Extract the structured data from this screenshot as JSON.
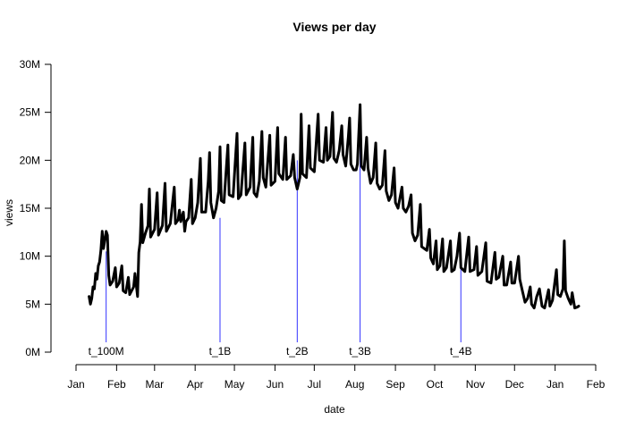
{
  "chart_data": {
    "type": "line",
    "title": "Views per day",
    "xlabel": "date",
    "ylabel": "views",
    "x_unit": "date",
    "y_unit": "views",
    "x_ticks": [
      "Jan",
      "Feb",
      "Mar",
      "Apr",
      "May",
      "Jun",
      "Jul",
      "Aug",
      "Sep",
      "Oct",
      "Nov",
      "Dec",
      "Jan",
      "Feb"
    ],
    "x_tick_dates": [
      "2016-01-01",
      "2016-02-01",
      "2016-03-01",
      "2016-04-01",
      "2016-05-01",
      "2016-06-01",
      "2016-07-01",
      "2016-08-01",
      "2016-09-01",
      "2016-10-01",
      "2016-11-01",
      "2016-12-01",
      "2017-01-01",
      "2017-02-01"
    ],
    "y_ticks": [
      {
        "value": 0,
        "label": "0M"
      },
      {
        "value": 5000000,
        "label": "5M"
      },
      {
        "value": 10000000,
        "label": "10M"
      },
      {
        "value": 15000000,
        "label": "15M"
      },
      {
        "value": 20000000,
        "label": "20M"
      },
      {
        "value": 25000000,
        "label": "25M"
      },
      {
        "value": 30000000,
        "label": "30M"
      }
    ],
    "ylim": [
      0,
      30000000
    ],
    "grid": false,
    "legend": "none",
    "series": [
      {
        "color": "#000000",
        "points": [
          [
            "2016-01-11",
            5800000
          ],
          [
            "2016-01-12",
            5000000
          ],
          [
            "2016-01-13",
            5600000
          ],
          [
            "2016-01-14",
            6800000
          ],
          [
            "2016-01-15",
            6600000
          ],
          [
            "2016-01-16",
            8200000
          ],
          [
            "2016-01-17",
            7600000
          ],
          [
            "2016-01-18",
            9000000
          ],
          [
            "2016-01-19",
            9400000
          ],
          [
            "2016-01-20",
            10600000
          ],
          [
            "2016-01-21",
            12600000
          ],
          [
            "2016-01-22",
            10800000
          ],
          [
            "2016-01-24",
            12600000
          ],
          [
            "2016-01-25",
            12200000
          ],
          [
            "2016-01-26",
            8000000
          ],
          [
            "2016-01-27",
            7000000
          ],
          [
            "2016-01-29",
            7400000
          ],
          [
            "2016-01-31",
            8800000
          ],
          [
            "2016-02-01",
            6800000
          ],
          [
            "2016-02-03",
            7200000
          ],
          [
            "2016-02-05",
            9000000
          ],
          [
            "2016-02-06",
            6400000
          ],
          [
            "2016-02-08",
            6200000
          ],
          [
            "2016-02-10",
            7800000
          ],
          [
            "2016-02-11",
            6000000
          ],
          [
            "2016-02-14",
            6800000
          ],
          [
            "2016-02-15",
            8200000
          ],
          [
            "2016-02-17",
            5800000
          ],
          [
            "2016-02-18",
            10400000
          ],
          [
            "2016-02-19",
            11500000
          ],
          [
            "2016-02-20",
            15400000
          ],
          [
            "2016-02-21",
            11400000
          ],
          [
            "2016-02-23",
            12400000
          ],
          [
            "2016-02-25",
            13200000
          ],
          [
            "2016-02-26",
            17000000
          ],
          [
            "2016-02-27",
            12000000
          ],
          [
            "2016-03-01",
            12800000
          ],
          [
            "2016-03-03",
            16600000
          ],
          [
            "2016-03-04",
            12200000
          ],
          [
            "2016-03-07",
            13200000
          ],
          [
            "2016-03-09",
            17600000
          ],
          [
            "2016-03-10",
            12600000
          ],
          [
            "2016-03-13",
            13400000
          ],
          [
            "2016-03-16",
            17200000
          ],
          [
            "2016-03-17",
            13400000
          ],
          [
            "2016-03-19",
            13800000
          ],
          [
            "2016-03-20",
            14800000
          ],
          [
            "2016-03-21",
            13600000
          ],
          [
            "2016-03-23",
            14600000
          ],
          [
            "2016-03-24",
            12600000
          ],
          [
            "2016-03-25",
            13600000
          ],
          [
            "2016-03-27",
            14000000
          ],
          [
            "2016-03-29",
            18000000
          ],
          [
            "2016-03-30",
            13400000
          ],
          [
            "2016-04-01",
            14000000
          ],
          [
            "2016-04-03",
            15600000
          ],
          [
            "2016-04-05",
            20200000
          ],
          [
            "2016-04-06",
            14600000
          ],
          [
            "2016-04-09",
            14600000
          ],
          [
            "2016-04-11",
            17800000
          ],
          [
            "2016-04-12",
            20800000
          ],
          [
            "2016-04-13",
            15600000
          ],
          [
            "2016-04-15",
            14000000
          ],
          [
            "2016-04-17",
            15000000
          ],
          [
            "2016-04-19",
            16800000
          ],
          [
            "2016-04-20",
            21400000
          ],
          [
            "2016-04-21",
            15800000
          ],
          [
            "2016-04-23",
            15600000
          ],
          [
            "2016-04-26",
            21600000
          ],
          [
            "2016-04-27",
            16400000
          ],
          [
            "2016-04-30",
            16200000
          ],
          [
            "2016-05-03",
            22800000
          ],
          [
            "2016-05-04",
            16000000
          ],
          [
            "2016-05-06",
            16400000
          ],
          [
            "2016-05-09",
            21800000
          ],
          [
            "2016-05-10",
            16400000
          ],
          [
            "2016-05-13",
            17200000
          ],
          [
            "2016-05-15",
            22400000
          ],
          [
            "2016-05-16",
            16600000
          ],
          [
            "2016-05-18",
            16200000
          ],
          [
            "2016-05-20",
            17800000
          ],
          [
            "2016-05-22",
            23000000
          ],
          [
            "2016-05-23",
            18200000
          ],
          [
            "2016-05-25",
            17200000
          ],
          [
            "2016-05-28",
            22600000
          ],
          [
            "2016-05-29",
            17400000
          ],
          [
            "2016-06-01",
            17800000
          ],
          [
            "2016-06-03",
            23400000
          ],
          [
            "2016-06-04",
            18600000
          ],
          [
            "2016-06-07",
            18000000
          ],
          [
            "2016-06-09",
            22400000
          ],
          [
            "2016-06-10",
            18000000
          ],
          [
            "2016-06-13",
            18400000
          ],
          [
            "2016-06-15",
            20600000
          ],
          [
            "2016-06-16",
            18200000
          ],
          [
            "2016-06-18",
            17000000
          ],
          [
            "2016-06-20",
            18200000
          ],
          [
            "2016-06-21",
            24800000
          ],
          [
            "2016-06-22",
            18600000
          ],
          [
            "2016-06-25",
            18200000
          ],
          [
            "2016-06-27",
            23600000
          ],
          [
            "2016-06-28",
            19200000
          ],
          [
            "2016-07-01",
            18800000
          ],
          [
            "2016-07-04",
            24800000
          ],
          [
            "2016-07-05",
            20000000
          ],
          [
            "2016-07-08",
            19800000
          ],
          [
            "2016-07-10",
            23400000
          ],
          [
            "2016-07-11",
            20000000
          ],
          [
            "2016-07-13",
            20400000
          ],
          [
            "2016-07-15",
            25000000
          ],
          [
            "2016-07-16",
            20200000
          ],
          [
            "2016-07-18",
            19800000
          ],
          [
            "2016-07-20",
            21000000
          ],
          [
            "2016-07-22",
            23600000
          ],
          [
            "2016-07-23",
            20600000
          ],
          [
            "2016-07-25",
            19400000
          ],
          [
            "2016-07-27",
            22400000
          ],
          [
            "2016-07-28",
            24400000
          ],
          [
            "2016-07-29",
            19600000
          ],
          [
            "2016-07-31",
            19000000
          ],
          [
            "2016-08-02",
            19000000
          ],
          [
            "2016-08-03",
            19600000
          ],
          [
            "2016-08-05",
            25800000
          ],
          [
            "2016-08-06",
            19400000
          ],
          [
            "2016-08-08",
            19000000
          ],
          [
            "2016-08-10",
            22400000
          ],
          [
            "2016-08-11",
            19200000
          ],
          [
            "2016-08-13",
            17600000
          ],
          [
            "2016-08-15",
            18200000
          ],
          [
            "2016-08-17",
            21800000
          ],
          [
            "2016-08-18",
            17600000
          ],
          [
            "2016-08-20",
            17000000
          ],
          [
            "2016-08-22",
            17400000
          ],
          [
            "2016-08-24",
            21000000
          ],
          [
            "2016-08-25",
            16800000
          ],
          [
            "2016-08-27",
            15800000
          ],
          [
            "2016-08-29",
            16400000
          ],
          [
            "2016-08-31",
            19200000
          ],
          [
            "2016-09-01",
            15600000
          ],
          [
            "2016-09-03",
            15000000
          ],
          [
            "2016-09-06",
            17200000
          ],
          [
            "2016-09-07",
            15000000
          ],
          [
            "2016-09-09",
            14600000
          ],
          [
            "2016-09-11",
            15200000
          ],
          [
            "2016-09-13",
            16400000
          ],
          [
            "2016-09-14",
            12400000
          ],
          [
            "2016-09-16",
            11600000
          ],
          [
            "2016-09-18",
            12200000
          ],
          [
            "2016-09-20",
            15400000
          ],
          [
            "2016-09-21",
            11000000
          ],
          [
            "2016-09-23",
            10800000
          ],
          [
            "2016-09-25",
            10600000
          ],
          [
            "2016-09-27",
            12800000
          ],
          [
            "2016-09-28",
            9800000
          ],
          [
            "2016-09-30",
            9200000
          ],
          [
            "2016-10-02",
            11600000
          ],
          [
            "2016-10-03",
            8600000
          ],
          [
            "2016-10-05",
            9000000
          ],
          [
            "2016-10-07",
            11800000
          ],
          [
            "2016-10-08",
            8400000
          ],
          [
            "2016-10-10",
            8800000
          ],
          [
            "2016-10-13",
            11600000
          ],
          [
            "2016-10-14",
            8400000
          ],
          [
            "2016-10-16",
            8600000
          ],
          [
            "2016-10-18",
            10000000
          ],
          [
            "2016-10-20",
            12400000
          ],
          [
            "2016-10-21",
            8800000
          ],
          [
            "2016-10-24",
            8400000
          ],
          [
            "2016-10-27",
            12000000
          ],
          [
            "2016-10-28",
            8400000
          ],
          [
            "2016-10-31",
            8600000
          ],
          [
            "2016-11-02",
            11000000
          ],
          [
            "2016-11-03",
            8000000
          ],
          [
            "2016-11-06",
            8400000
          ],
          [
            "2016-11-09",
            11400000
          ],
          [
            "2016-11-10",
            7400000
          ],
          [
            "2016-11-13",
            7200000
          ],
          [
            "2016-11-16",
            10400000
          ],
          [
            "2016-11-17",
            7600000
          ],
          [
            "2016-11-19",
            7800000
          ],
          [
            "2016-11-22",
            10000000
          ],
          [
            "2016-11-23",
            7000000
          ],
          [
            "2016-11-25",
            7000000
          ],
          [
            "2016-11-28",
            9400000
          ],
          [
            "2016-11-29",
            7200000
          ],
          [
            "2016-12-01",
            7200000
          ],
          [
            "2016-12-04",
            10000000
          ],
          [
            "2016-12-05",
            7600000
          ],
          [
            "2016-12-07",
            6400000
          ],
          [
            "2016-12-09",
            5200000
          ],
          [
            "2016-12-11",
            5600000
          ],
          [
            "2016-12-13",
            6800000
          ],
          [
            "2016-12-14",
            5000000
          ],
          [
            "2016-12-16",
            4600000
          ],
          [
            "2016-12-18",
            5800000
          ],
          [
            "2016-12-20",
            6600000
          ],
          [
            "2016-12-22",
            4800000
          ],
          [
            "2016-12-24",
            4600000
          ],
          [
            "2016-12-27",
            6500000
          ],
          [
            "2016-12-28",
            4800000
          ],
          [
            "2016-12-30",
            5400000
          ],
          [
            "2017-01-02",
            8600000
          ],
          [
            "2017-01-03",
            6000000
          ],
          [
            "2017-01-05",
            5800000
          ],
          [
            "2017-01-07",
            6600000
          ],
          [
            "2017-01-08",
            11600000
          ],
          [
            "2017-01-09",
            6400000
          ],
          [
            "2017-01-11",
            5600000
          ],
          [
            "2017-01-13",
            5000000
          ],
          [
            "2017-01-14",
            6200000
          ],
          [
            "2017-01-16",
            4600000
          ],
          [
            "2017-01-18",
            4700000
          ],
          [
            "2017-01-19",
            4800000
          ]
        ]
      }
    ],
    "annotations": [
      {
        "label": "t_100M",
        "date": "2016-01-24",
        "y": 10500000,
        "color": "#3333ff"
      },
      {
        "label": "t_1B",
        "date": "2016-04-20",
        "y": 14000000,
        "color": "#3333ff"
      },
      {
        "label": "t_2B",
        "date": "2016-06-18",
        "y": 20000000,
        "color": "#3333ff"
      },
      {
        "label": "t_3B",
        "date": "2016-08-05",
        "y": 22800000,
        "color": "#3333ff"
      },
      {
        "label": "t_4B",
        "date": "2016-10-21",
        "y": 8800000,
        "color": "#3333ff"
      }
    ]
  }
}
